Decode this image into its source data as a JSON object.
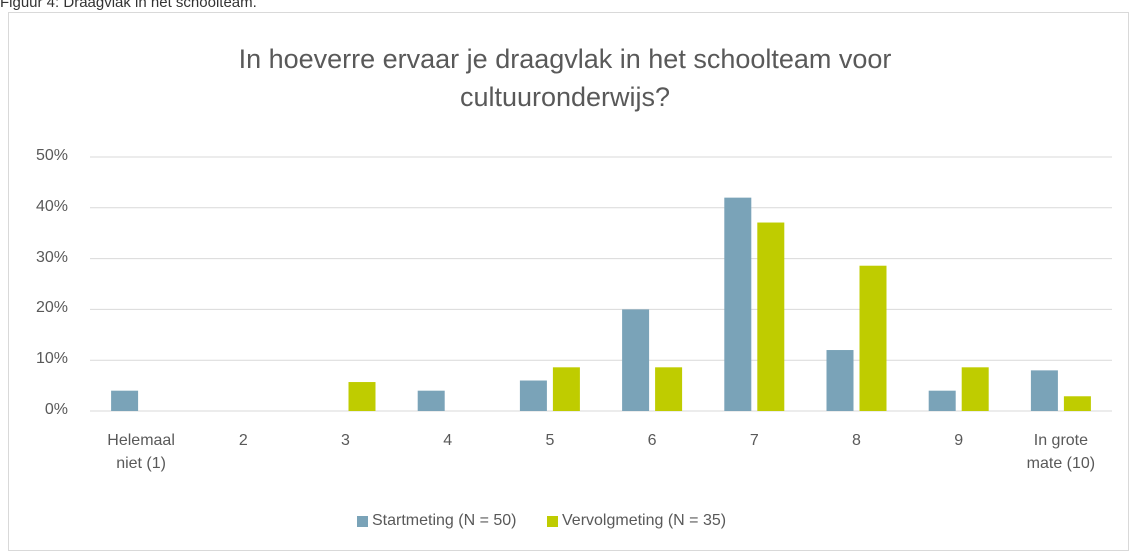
{
  "caption": "Figuur 4: Draagvlak in het schoolteam.",
  "chart_data": {
    "type": "bar",
    "title": "In hoeverre ervaar je draagvlak in het schoolteam voor cultuuronderwijs?",
    "categories": [
      "Helemaal niet (1)",
      "2",
      "3",
      "4",
      "5",
      "6",
      "7",
      "8",
      "9",
      "In grote mate (10)"
    ],
    "series": [
      {
        "name": "Startmeting (N = 50)",
        "color": "#7aa3b8",
        "values": [
          4,
          0,
          0,
          4,
          6,
          20,
          42,
          12,
          4,
          8
        ]
      },
      {
        "name": "Vervolgmeting (N = 35)",
        "color": "#bfcc00",
        "values": [
          0,
          0,
          5.7,
          0,
          8.6,
          8.6,
          37.1,
          28.6,
          8.6,
          2.9
        ]
      }
    ],
    "ylim": [
      0,
      50
    ],
    "yticks": [
      {
        "value": 0,
        "label": "0%"
      },
      {
        "value": 10,
        "label": "10%"
      },
      {
        "value": 20,
        "label": "20%"
      },
      {
        "value": 30,
        "label": "30%"
      },
      {
        "value": 40,
        "label": "40%"
      },
      {
        "value": 50,
        "label": "50%"
      }
    ],
    "grid": true,
    "legend": "bottom"
  }
}
